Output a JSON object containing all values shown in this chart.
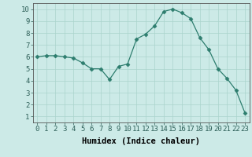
{
  "x": [
    0,
    1,
    2,
    3,
    4,
    5,
    6,
    7,
    8,
    9,
    10,
    11,
    12,
    13,
    14,
    15,
    16,
    17,
    18,
    19,
    20,
    21,
    22,
    23
  ],
  "y": [
    6.0,
    6.1,
    6.1,
    6.0,
    5.9,
    5.5,
    5.0,
    5.0,
    4.1,
    5.2,
    5.4,
    7.5,
    7.9,
    8.6,
    9.8,
    10.0,
    9.7,
    9.2,
    7.6,
    6.6,
    5.0,
    4.2,
    3.2,
    1.3
  ],
  "xlabel": "Humidex (Indice chaleur)",
  "xlim": [
    -0.5,
    23.5
  ],
  "ylim": [
    0.5,
    10.5
  ],
  "line_color": "#2d7d6e",
  "marker": "D",
  "marker_size": 2.5,
  "bg_color": "#cceae7",
  "grid_color": "#aad4cc",
  "xticks": [
    0,
    1,
    2,
    3,
    4,
    5,
    6,
    7,
    8,
    9,
    10,
    11,
    12,
    13,
    14,
    15,
    16,
    17,
    18,
    19,
    20,
    21,
    22,
    23
  ],
  "yticks": [
    1,
    2,
    3,
    4,
    5,
    6,
    7,
    8,
    9,
    10
  ],
  "tick_fontsize": 6.5,
  "xlabel_fontsize": 7.5
}
